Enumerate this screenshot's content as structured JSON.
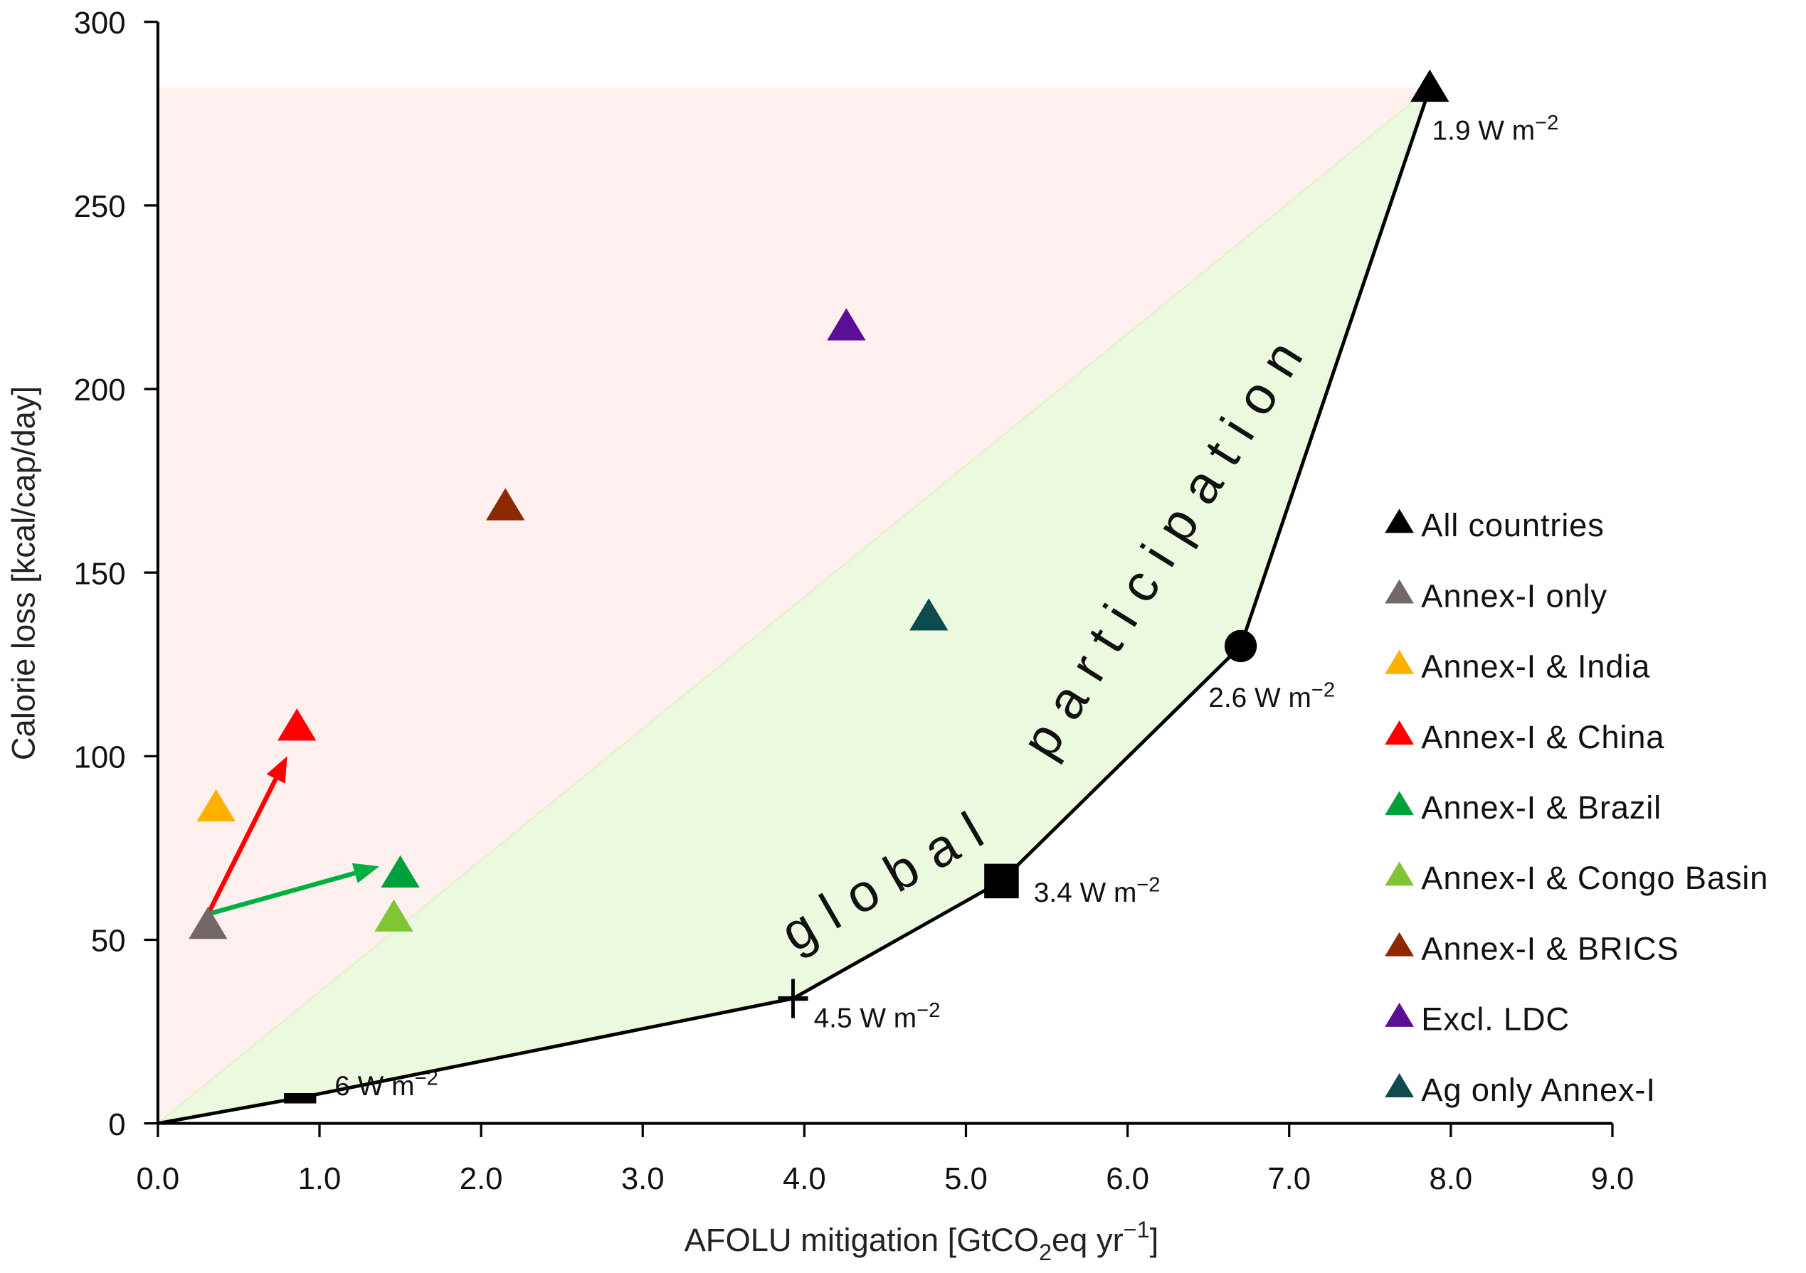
{
  "chart_data": {
    "type": "scatter",
    "xlabel": {
      "pre": "AFOLU mitigation [GtCO",
      "sub": "2",
      "mid": "eq yr",
      "sup": "−1",
      "post": "]"
    },
    "ylabel": "Calorie loss [kcal/cap/day]",
    "xlim": [
      0,
      9
    ],
    "ylim": [
      0,
      300
    ],
    "xticks": [
      "0.0",
      "1.0",
      "2.0",
      "3.0",
      "4.0",
      "5.0",
      "6.0",
      "7.0",
      "8.0",
      "9.0"
    ],
    "yticks": [
      "0",
      "50",
      "100",
      "150",
      "200",
      "250",
      "300"
    ],
    "grid": false,
    "legend_position": "right",
    "frontier": {
      "name": "Global participation frontier",
      "points": [
        {
          "x": 0,
          "y": 0,
          "marker": "none",
          "label": ""
        },
        {
          "x": 0.88,
          "y": 7,
          "marker": "dash",
          "label": "6 W m",
          "sup": "−2"
        },
        {
          "x": 3.93,
          "y": 34,
          "marker": "plus",
          "label": "4.5 W m",
          "sup": "−2"
        },
        {
          "x": 5.22,
          "y": 66,
          "marker": "square",
          "label": "3.4 W m",
          "sup": "−2"
        },
        {
          "x": 6.7,
          "y": 130,
          "marker": "circle",
          "label": "2.6 W m",
          "sup": "−2"
        },
        {
          "x": 7.87,
          "y": 282,
          "marker": "triangle",
          "label": "1.9 W m",
          "sup": "−2"
        }
      ]
    },
    "series": [
      {
        "name": "All countries",
        "color": "#000000",
        "x": 7.87,
        "y": 282
      },
      {
        "name": "Annex-I only",
        "color": "#736868",
        "x": 0.31,
        "y": 54
      },
      {
        "name": "Annex-I & India",
        "color": "#ffb000",
        "x": 0.36,
        "y": 86
      },
      {
        "name": "Annex-I & China",
        "color": "#ff0000",
        "x": 0.86,
        "y": 108
      },
      {
        "name": "Annex-I & Brazil",
        "color": "#00a03c",
        "x": 1.5,
        "y": 68
      },
      {
        "name": "Annex-I & Congo Basin",
        "color": "#80c634",
        "x": 1.46,
        "y": 56
      },
      {
        "name": "Annex-I & BRICS",
        "color": "#8b2a00",
        "x": 2.15,
        "y": 168
      },
      {
        "name": "Excl. LDC",
        "color": "#5a0f96",
        "x": 4.26,
        "y": 217
      },
      {
        "name": "Ag only Annex-I",
        "color": "#0f4a4e",
        "x": 4.77,
        "y": 138
      }
    ],
    "arrows": [
      {
        "from": [
          0.31,
          57
        ],
        "to": [
          0.8,
          100
        ],
        "color": "#ff0000"
      },
      {
        "from": [
          0.31,
          57
        ],
        "to": [
          1.37,
          70
        ],
        "color": "#00b040"
      }
    ],
    "regions": {
      "pink": "#fdf0ee",
      "green": "#ebfadf"
    },
    "annotation_words": [
      "global",
      "participation"
    ]
  }
}
